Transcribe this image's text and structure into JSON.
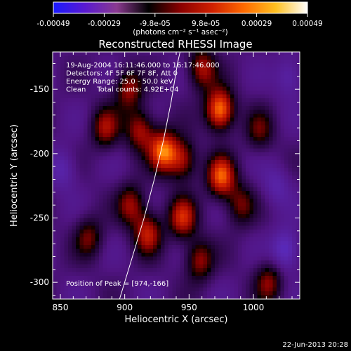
{
  "colorbar": {
    "ticks": [
      "-0.00049",
      "-0.00029",
      "-9.8e-05",
      "9.8e-05",
      "0.00029",
      "0.00049"
    ],
    "units": "(photons cm⁻² s⁻¹ asec⁻²)",
    "colors": [
      "#1a1aff",
      "#5a1ad0",
      "#8a3a90",
      "#000000",
      "#8a0000",
      "#d02000",
      "#ff6a00",
      "#ffc020",
      "#ffffff"
    ]
  },
  "chart_data": {
    "type": "heatmap",
    "title": "Reconstructed RHESSI Image",
    "xlabel": "Heliocentric X (arcsec)",
    "ylabel": "Heliocentric Y (arcsec)",
    "xlim": [
      844,
      1036
    ],
    "ylim": [
      -313,
      -121
    ],
    "xticks": [
      "850",
      "900",
      "950",
      "1000"
    ],
    "yticks": [
      "-150",
      "-200",
      "-250",
      "-300"
    ],
    "grid": false,
    "info_lines": [
      "19-Aug-2004 16:11:46.000 to 16:17:46.000",
      "Detectors: 4F 5F 6F 7F 8F, Att 0",
      "Energy Range: 25.0 - 50.0 keV",
      "Clean     Total counts: 4.92E+04"
    ],
    "peak_label": "Position of Peak = [974,-166]",
    "peak": [
      974,
      -166
    ],
    "limb": [
      [
        896,
        -313
      ],
      [
        906,
        -280
      ],
      [
        915,
        -250
      ],
      [
        923,
        -220
      ],
      [
        930,
        -190
      ],
      [
        936,
        -160
      ],
      [
        941,
        -130
      ],
      [
        943,
        -121
      ]
    ],
    "sources": [
      {
        "x": 974,
        "y": -166,
        "v": 1.0
      },
      {
        "x": 930,
        "y": -198,
        "v": 0.9
      },
      {
        "x": 975,
        "y": -218,
        "v": 0.85
      },
      {
        "x": 960,
        "y": -134,
        "v": 0.6
      },
      {
        "x": 903,
        "y": -150,
        "v": 0.55
      },
      {
        "x": 885,
        "y": -180,
        "v": 0.55
      },
      {
        "x": 912,
        "y": -182,
        "v": 0.6
      },
      {
        "x": 945,
        "y": -250,
        "v": 0.7
      },
      {
        "x": 918,
        "y": -262,
        "v": 0.65
      },
      {
        "x": 905,
        "y": -240,
        "v": 0.55
      },
      {
        "x": 990,
        "y": -240,
        "v": 0.45
      },
      {
        "x": 958,
        "y": -283,
        "v": 0.55
      },
      {
        "x": 1012,
        "y": -300,
        "v": 0.5
      },
      {
        "x": 872,
        "y": -265,
        "v": 0.45
      },
      {
        "x": 1005,
        "y": -182,
        "v": 0.4
      },
      {
        "x": 945,
        "y": -205,
        "v": 0.6
      },
      {
        "x": 1025,
        "y": -275,
        "v": -0.45
      },
      {
        "x": 1028,
        "y": -140,
        "v": -0.3
      },
      {
        "x": 852,
        "y": -212,
        "v": -0.3
      },
      {
        "x": 1018,
        "y": -225,
        "v": -0.25
      }
    ]
  },
  "footer_date": "22-Jun-2013 20:28"
}
